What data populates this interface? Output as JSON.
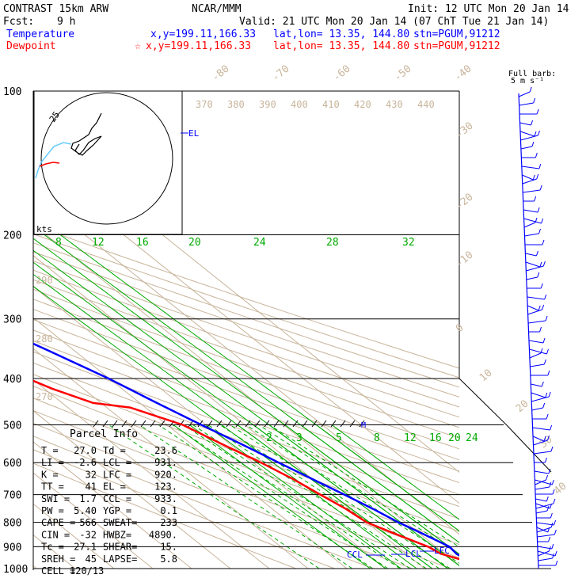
{
  "header": {
    "model": "CONTRAST 15km ARW",
    "org": "NCAR/MMM",
    "init": "Init: 12 UTC Mon 20 Jan 14",
    "fcst_label": "Fcst:",
    "fcst_value": "9 h",
    "valid": "Valid: 21 UTC Mon 20 Jan 14 (07 ChT Tue 21 Jan 14)"
  },
  "legend": {
    "temperature": {
      "name": "Temperature",
      "xy": "x,y=199.11,166.33",
      "latlon": "lat,lon= 13.35, 144.80",
      "stn": "stn=PGUM,91212",
      "color": "#0000ff"
    },
    "dewpoint": {
      "name": "Dewpoint",
      "star": "☆",
      "xy": "x,y=199.11,166.33",
      "latlon": "lat,lon= 13.35, 144.80",
      "stn": "stn=PGUM,91212",
      "color": "#ff0000"
    }
  },
  "barb_header": [
    "Full barb:",
    "5 m s⁻¹"
  ],
  "hodograph": {
    "ring_label": "25",
    "units": "kts"
  },
  "parcel_info": {
    "title": "Parcel Info",
    "rows": [
      [
        "T   =",
        "27.0",
        "Td  =",
        "23.6"
      ],
      [
        "LI  =",
        "-2.6",
        "LCL =",
        "931."
      ],
      [
        "K   =",
        "32",
        "LFC =",
        "920."
      ],
      [
        "TT  =",
        "41",
        "EL  =",
        "123."
      ],
      [
        "SWI =",
        "1.7",
        "CCL =",
        "933."
      ],
      [
        "PW  =",
        "5.40",
        "YGP =",
        "0.1"
      ],
      [
        "CAPE =",
        "566",
        "SWEAT=",
        "233"
      ],
      [
        "CIN =",
        "-32",
        "HWBZ=",
        "4890."
      ],
      [
        "Tc  =",
        "27.1",
        "SHEAR=",
        "15."
      ],
      [
        "SREH =",
        "45",
        "LAPSE=",
        "5.8"
      ],
      [
        "CELL =",
        "120/13",
        "",
        ""
      ]
    ]
  },
  "markers": {
    "el": "EL",
    "ccl": "CCL",
    "lcl": "LCL",
    "lfc": "LFC",
    "m": "M"
  },
  "colors": {
    "temperature": "#0000ff",
    "dewpoint": "#ff0000",
    "mixing_ratio": "#00aa00",
    "adiabat": "#c8b49a",
    "isobar": "#000000",
    "hodograph_trace": "#000000",
    "hodograph_low": "#66ccff"
  },
  "chart_data": {
    "type": "line",
    "title": "",
    "y_axis": {
      "label": "",
      "scale": "log",
      "ticks": [
        100,
        200,
        300,
        400,
        500,
        600,
        700,
        800,
        900,
        1000
      ],
      "ylim": [
        1000,
        100
      ]
    },
    "x_axis": {
      "label": "",
      "skewed_isotherm_labels": [
        -80,
        -70,
        -60,
        -50,
        -40,
        -30,
        -20,
        -10,
        0,
        10,
        20,
        30,
        40
      ]
    },
    "dry_adiabat_labels": {
      "upper": [
        370,
        380,
        390,
        400,
        410,
        420,
        430,
        440
      ],
      "left": [
        290,
        280,
        270
      ]
    },
    "mixing_ratio_labels_upper": [
      8,
      12,
      16,
      20,
      24,
      28,
      32
    ],
    "mixing_ratio_labels_lower": [
      2,
      3,
      5,
      8,
      12,
      16,
      20,
      24
    ],
    "series": [
      {
        "name": "Temperature",
        "points": [
          [
            1000,
            27.0
          ],
          [
            975,
            24.5
          ],
          [
            955,
            23.6
          ],
          [
            931,
            23.0
          ],
          [
            900,
            23.5
          ],
          [
            850,
            21.0
          ],
          [
            800,
            18.2
          ],
          [
            750,
            16.0
          ],
          [
            700,
            13.2
          ],
          [
            650,
            10.0
          ],
          [
            600,
            6.6
          ],
          [
            550,
            3.0
          ],
          [
            500,
            -1.2
          ],
          [
            450,
            -5.6
          ],
          [
            400,
            -10.2
          ],
          [
            350,
            -16.6
          ],
          [
            300,
            -24.5
          ],
          [
            250,
            -34.0
          ],
          [
            200,
            -45.5
          ],
          [
            175,
            -52.5
          ],
          [
            150,
            -61.0
          ],
          [
            125,
            -72.0
          ],
          [
            115,
            -77.0
          ],
          [
            110,
            -80.0
          ],
          [
            100,
            -83.0
          ]
        ]
      },
      {
        "name": "Dewpoint",
        "points": [
          [
            1000,
            23.6
          ],
          [
            975,
            23.5
          ],
          [
            955,
            22.0
          ],
          [
            931,
            19.0
          ],
          [
            900,
            18.0
          ],
          [
            850,
            14.0
          ],
          [
            800,
            10.0
          ],
          [
            750,
            9.0
          ],
          [
            700,
            7.0
          ],
          [
            650,
            5.0
          ],
          [
            600,
            2.0
          ],
          [
            550,
            -2.0
          ],
          [
            500,
            -6.0
          ],
          [
            460,
            -14.0
          ],
          [
            450,
            -22.0
          ],
          [
            420,
            -28.0
          ],
          [
            400,
            -31.0
          ],
          [
            370,
            -38.0
          ],
          [
            330,
            -40.0
          ],
          [
            300,
            -40.0
          ],
          [
            275,
            -47.0
          ],
          [
            255,
            -56.0
          ],
          [
            230,
            -61.0
          ],
          [
            210,
            -58.0
          ],
          [
            200,
            -61.0
          ],
          [
            170,
            -68.0
          ],
          [
            145,
            -77.0
          ],
          [
            125,
            -84.0
          ],
          [
            115,
            -86.0
          ],
          [
            100,
            -88.0
          ]
        ]
      }
    ],
    "wind_barbs_note": "Wind barbs drawn along right margin from 1000 to 100 hPa"
  }
}
